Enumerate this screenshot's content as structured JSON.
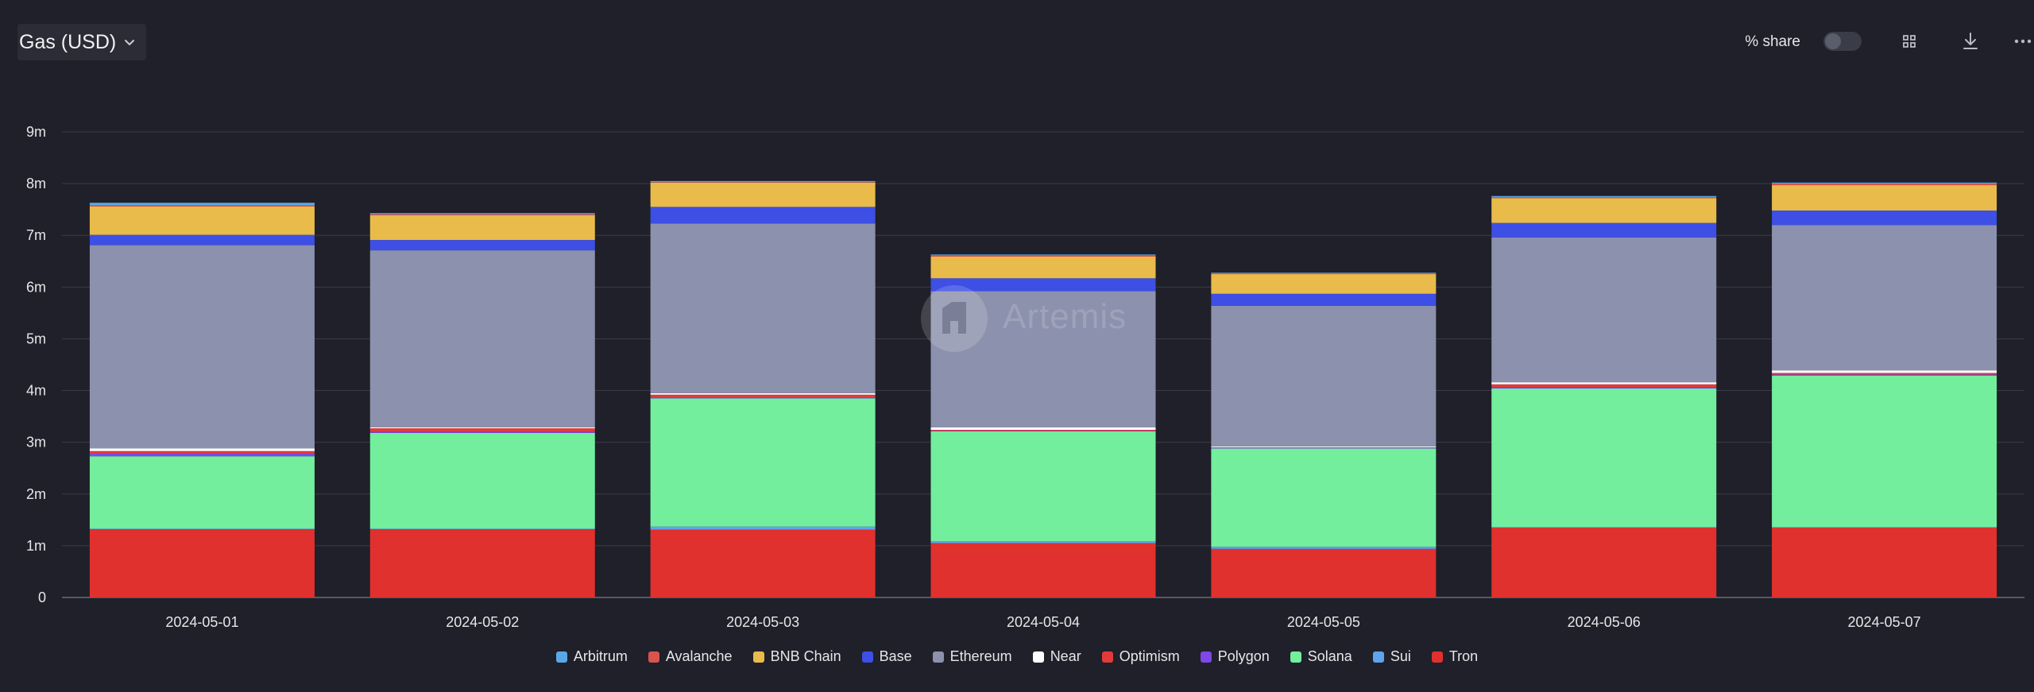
{
  "header": {
    "metric_label": "Gas (USD)",
    "share_label": "% share"
  },
  "icons": {
    "dropdown": "chevron-down-icon",
    "toggle": "toggle-switch",
    "grid": "grid-icon",
    "download": "download-icon",
    "more": "more-icon"
  },
  "watermark": {
    "text": "Artemis"
  },
  "chart_data": {
    "type": "bar",
    "stacked": true,
    "title": "",
    "xlabel": "",
    "ylabel": "",
    "ylim": [
      0,
      9000000
    ],
    "yticks": [
      0,
      1000000,
      2000000,
      3000000,
      4000000,
      5000000,
      6000000,
      7000000,
      8000000,
      9000000
    ],
    "ytick_labels": [
      "0",
      "1m",
      "2m",
      "3m",
      "4m",
      "5m",
      "6m",
      "7m",
      "8m",
      "9m"
    ],
    "grid": true,
    "legend": "bottom-center",
    "categories": [
      "2024-05-01",
      "2024-05-02",
      "2024-05-03",
      "2024-05-04",
      "2024-05-05",
      "2024-05-06",
      "2024-05-07"
    ],
    "series": [
      {
        "name": "Tron",
        "color": "#e0312e",
        "values": [
          1320000,
          1320000,
          1310000,
          1050000,
          940000,
          1350000,
          1350000
        ]
      },
      {
        "name": "Sui",
        "color": "#5fa3ee",
        "values": [
          10000,
          10000,
          60000,
          40000,
          40000,
          10000,
          10000
        ]
      },
      {
        "name": "Solana",
        "color": "#72ee9d",
        "values": [
          1400000,
          1850000,
          2480000,
          2120000,
          1900000,
          2680000,
          2930000
        ]
      },
      {
        "name": "Polygon",
        "color": "#7d48e6",
        "values": [
          50000,
          20000,
          20000,
          10000,
          10000,
          20000,
          20000
        ]
      },
      {
        "name": "Optimism",
        "color": "#e23a3a",
        "values": [
          50000,
          70000,
          50000,
          20000,
          10000,
          60000,
          30000
        ]
      },
      {
        "name": "Near",
        "color": "#ffffff",
        "values": [
          50000,
          20000,
          30000,
          50000,
          20000,
          40000,
          50000
        ]
      },
      {
        "name": "Ethereum",
        "color": "#8c91ad",
        "values": [
          3930000,
          3420000,
          3280000,
          2630000,
          2720000,
          2800000,
          2810000
        ]
      },
      {
        "name": "Base",
        "color": "#3d4fe4",
        "values": [
          200000,
          200000,
          320000,
          250000,
          230000,
          280000,
          280000
        ]
      },
      {
        "name": "BNB Chain",
        "color": "#e8bb4a",
        "values": [
          550000,
          480000,
          470000,
          420000,
          380000,
          480000,
          490000
        ]
      },
      {
        "name": "Avalanche",
        "color": "#d9534f",
        "values": [
          20000,
          20000,
          10000,
          30000,
          20000,
          20000,
          30000
        ]
      },
      {
        "name": "Arbitrum",
        "color": "#5aa7e8",
        "values": [
          50000,
          20000,
          20000,
          10000,
          10000,
          20000,
          20000
        ]
      }
    ],
    "legend_order": [
      "Arbitrum",
      "Avalanche",
      "BNB Chain",
      "Base",
      "Ethereum",
      "Near",
      "Optimism",
      "Polygon",
      "Solana",
      "Sui",
      "Tron"
    ]
  }
}
